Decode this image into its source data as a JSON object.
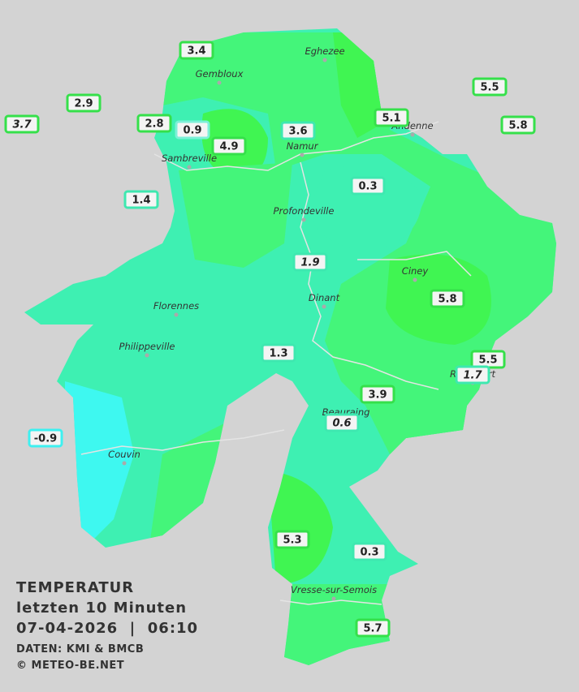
{
  "title": {
    "line1": "TEMPERATUR",
    "line2": "letzten 10 Minuten",
    "line3": "07-04-2026  |  06:10",
    "source": "DATEN: KMI & BMCB",
    "copyright": "© METEO-BE.NET"
  },
  "cities": [
    "Eghezee",
    "Gembloux",
    "Andenne",
    "Namur",
    "Sambreville",
    "Profondeville",
    "Ciney",
    "Dinant",
    "Florennes",
    "Philippeville",
    "Rochefort",
    "Beauraing",
    "Couvin",
    "Vresse-sur-Semois"
  ],
  "stations": [
    {
      "value": 3.4,
      "color": "#35e04a"
    },
    {
      "value": 2.9,
      "color": "#35e04a"
    },
    {
      "value": 3.7,
      "color": "#35e04a"
    },
    {
      "value": 2.8,
      "color": "#35e04a"
    },
    {
      "value": 0.9,
      "color": "#7cf0d8"
    },
    {
      "value": 4.9,
      "color": "#35e04a"
    },
    {
      "value": 3.6,
      "color": "#3ee8b0"
    },
    {
      "value": 5.1,
      "color": "#35e04a"
    },
    {
      "value": 5.5,
      "color": "#35e04a"
    },
    {
      "value": 5.8,
      "color": "#35e04a"
    },
    {
      "value": 1.4,
      "color": "#3ee8b0"
    },
    {
      "value": 0.3,
      "color": "#3ee8b0"
    },
    {
      "value": 1.9,
      "color": "#3ee8b0"
    },
    {
      "value": 5.8,
      "color": "#35e04a"
    },
    {
      "value": 1.3,
      "color": "#3ee8b0"
    },
    {
      "value": 5.5,
      "color": "#35e04a"
    },
    {
      "value": 1.7,
      "color": "#3ee8b0"
    },
    {
      "value": 3.9,
      "color": "#35e04a"
    },
    {
      "value": 0.6,
      "color": "#3ee8b0"
    },
    {
      "value": -0.9,
      "color": "#3ef0f0"
    },
    {
      "value": 5.3,
      "color": "#35e04a"
    },
    {
      "value": 0.3,
      "color": "#3ee8b0"
    },
    {
      "value": 5.7,
      "color": "#35e04a"
    }
  ]
}
